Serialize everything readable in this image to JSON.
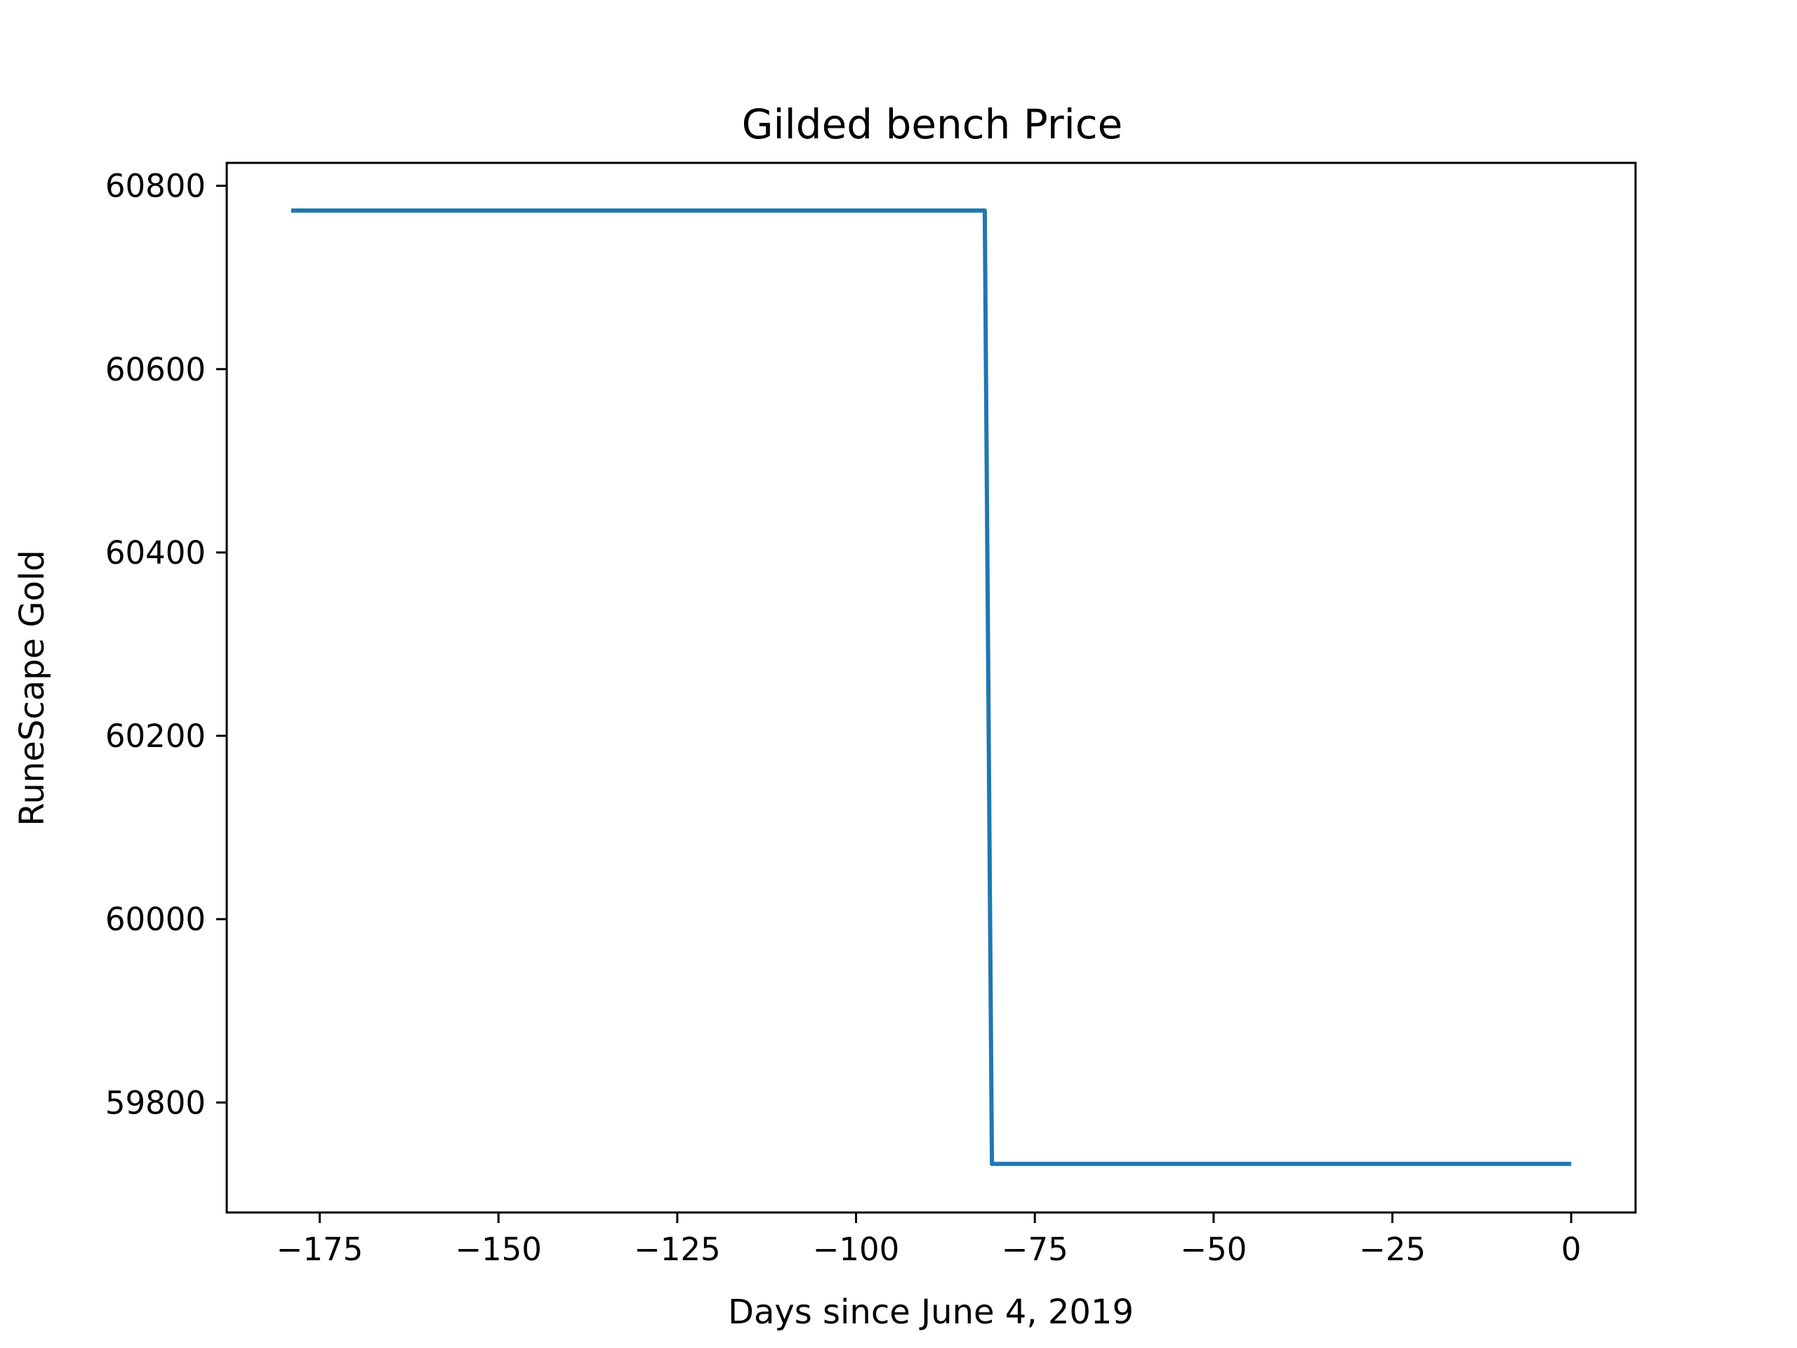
{
  "chart_data": {
    "type": "line",
    "title": "Gilded bench Price",
    "xlabel": "Days since June 4, 2019",
    "ylabel": "RuneScape Gold",
    "xlim": [
      -188,
      9
    ],
    "ylim": [
      59680,
      60825
    ],
    "x_ticks": [
      -175,
      -150,
      -125,
      -100,
      -75,
      -50,
      -25,
      0
    ],
    "x_tick_labels": [
      "−175",
      "−150",
      "−125",
      "−100",
      "−75",
      "−50",
      "−25",
      "0"
    ],
    "y_ticks": [
      59800,
      60000,
      60200,
      60400,
      60600,
      60800
    ],
    "y_tick_labels": [
      "59800",
      "60000",
      "60200",
      "60400",
      "60600",
      "60800"
    ],
    "grid": false,
    "series": [
      {
        "color": "#1f77b4",
        "x": [
          -179,
          -82,
          -81,
          0
        ],
        "y": [
          60773,
          60773,
          59733,
          59733
        ]
      }
    ]
  }
}
